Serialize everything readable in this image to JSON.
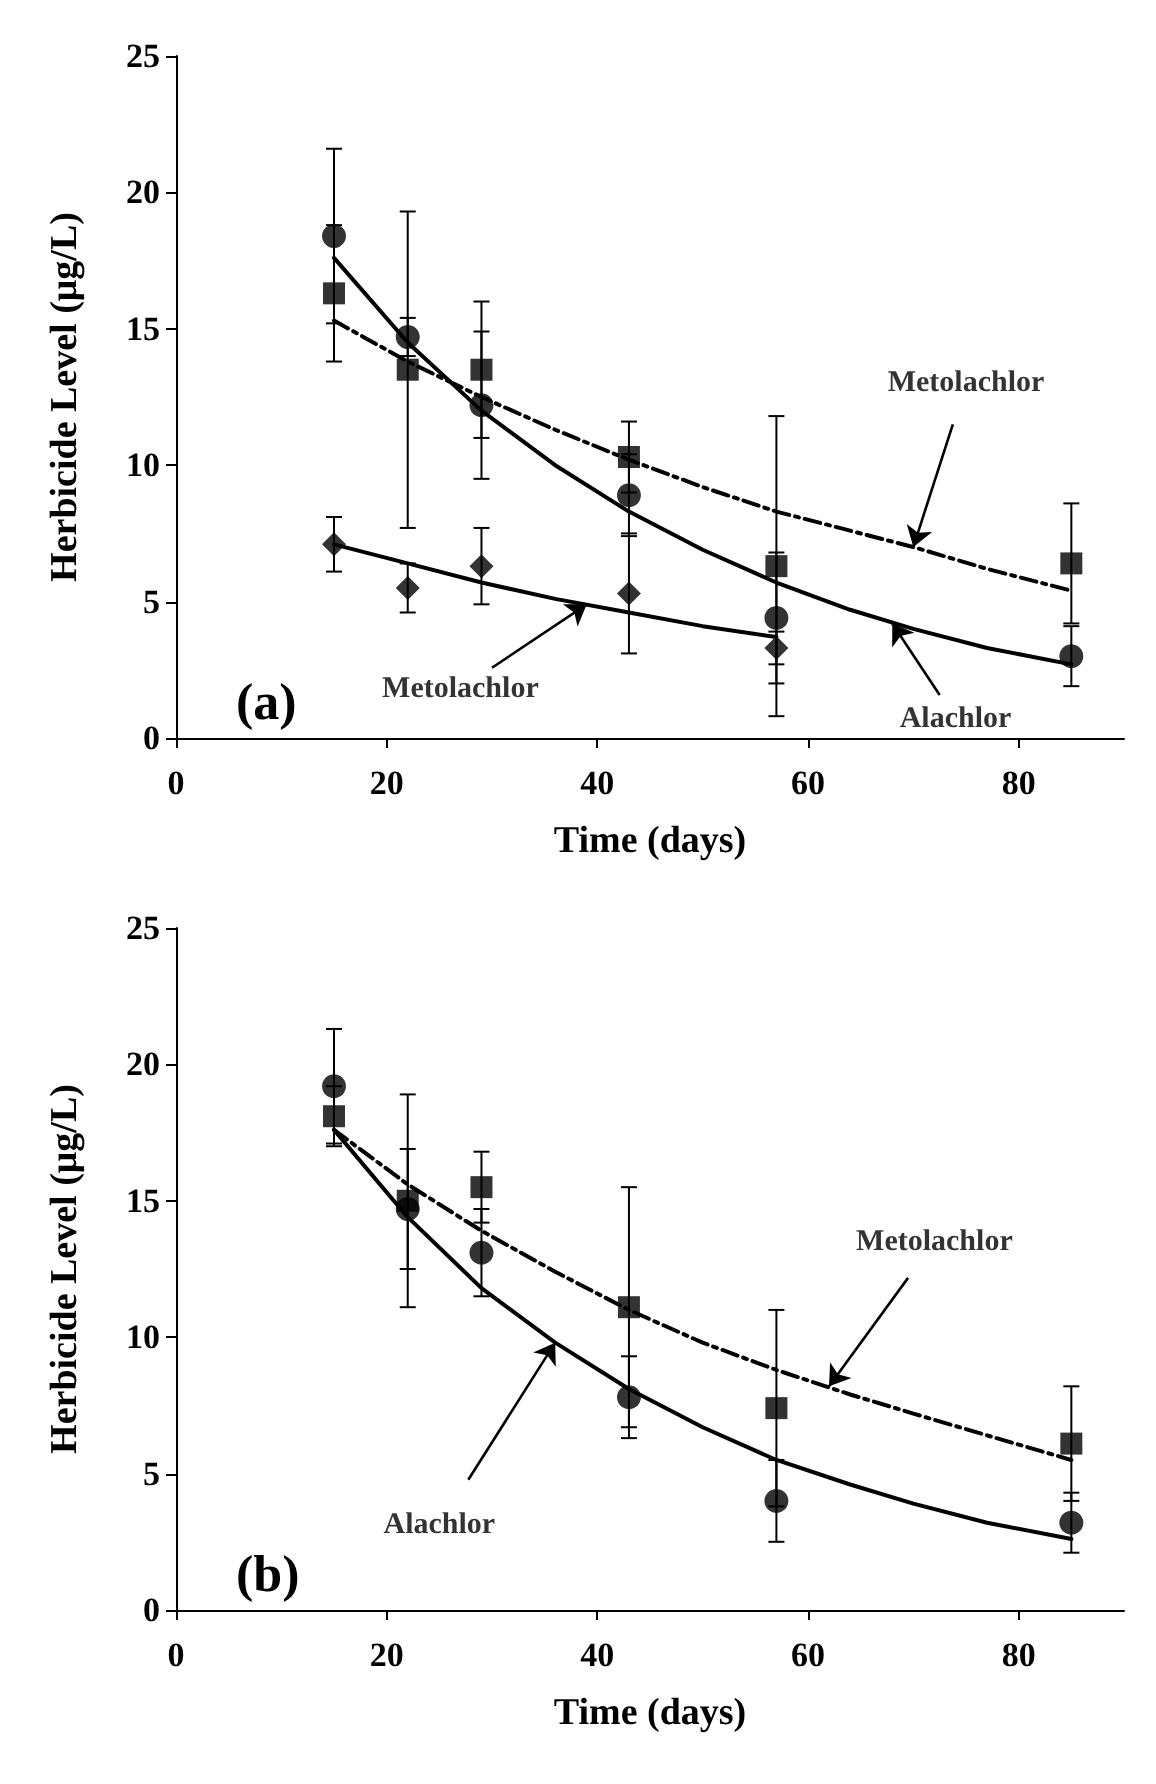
{
  "chart_data": [
    {
      "type": "scatter",
      "xlabel": "Time (days)",
      "ylabel": "Herbicide Level (μg/L)",
      "xlim": [
        0,
        90
      ],
      "xticks": [
        0,
        20,
        40,
        60,
        80
      ],
      "ylim": [
        0,
        25
      ],
      "yticks": [
        0,
        5,
        10,
        15,
        20,
        25
      ],
      "grid": false,
      "x": [
        15,
        22,
        29,
        43,
        57,
        85
      ],
      "series": [
        {
          "marker": "circle",
          "color": "#000000",
          "values": [
            18.4,
            14.7,
            12.2,
            8.9,
            4.4,
            3.0
          ],
          "errors": [
            3.2,
            0.7,
            2.7,
            1.5,
            2.4,
            1.1
          ]
        },
        {
          "marker": "square",
          "color": "#000000",
          "values": [
            16.3,
            13.5,
            13.5,
            10.3,
            6.3,
            6.4
          ],
          "errors": [
            2.5,
            5.8,
            2.5,
            1.3,
            5.5,
            2.2
          ]
        },
        {
          "marker": "diamond",
          "color": "#000000",
          "x": [
            15,
            22,
            29,
            43,
            57
          ],
          "values": [
            7.1,
            5.5,
            6.3,
            5.3,
            3.3
          ],
          "errors": [
            1.0,
            0.9,
            1.4,
            2.2,
            0.6
          ]
        },
        {
          "type": "line",
          "marker": "none",
          "line_style": "solid",
          "color": "#000000",
          "x": [
            15,
            22,
            29,
            36,
            43,
            50,
            57,
            64,
            70,
            77,
            85
          ],
          "values": [
            17.6,
            14.5,
            12.0,
            10.0,
            8.3,
            6.9,
            5.7,
            4.7,
            4.0,
            3.3,
            2.7
          ]
        },
        {
          "type": "line",
          "marker": "none",
          "line_style": "dashed",
          "color": "#000000",
          "x": [
            15,
            22,
            29,
            36,
            43,
            50,
            57,
            64,
            70,
            77,
            85
          ],
          "values": [
            15.3,
            13.8,
            12.5,
            11.3,
            10.2,
            9.2,
            8.3,
            7.6,
            7.0,
            6.2,
            5.4
          ]
        },
        {
          "type": "line",
          "marker": "none",
          "line_style": "solid",
          "color": "#000000",
          "x": [
            15,
            22,
            29,
            36,
            43,
            50,
            57
          ],
          "values": [
            7.1,
            6.4,
            5.7,
            5.1,
            4.6,
            4.1,
            3.7
          ]
        }
      ],
      "annotations": [
        {
          "text": "Metolachlor",
          "x": 70,
          "y": 7.0
        },
        {
          "text": "Metolachlor",
          "x": 39,
          "y": 4.9
        },
        {
          "text": "Alachlor",
          "x": 68,
          "y": 4.2
        },
        "(a)"
      ]
    },
    {
      "type": "scatter",
      "xlabel": "Time (days)",
      "ylabel": "Herbicide Level (μg/L)",
      "xlim": [
        0,
        90
      ],
      "xticks": [
        0,
        20,
        40,
        60,
        80
      ],
      "ylim": [
        0,
        25
      ],
      "yticks": [
        0,
        5,
        10,
        15,
        20,
        25
      ],
      "grid": false,
      "x": [
        15,
        22,
        29,
        43,
        57,
        85
      ],
      "series": [
        {
          "marker": "circle",
          "color": "#000000",
          "values": [
            19.2,
            14.7,
            13.1,
            7.8,
            4.0,
            3.2
          ],
          "errors": [
            2.1,
            2.2,
            1.6,
            1.5,
            1.5,
            1.1
          ]
        },
        {
          "marker": "square",
          "color": "#000000",
          "values": [
            18.1,
            15.0,
            15.5,
            11.1,
            7.4,
            6.1
          ],
          "errors": [
            1.1,
            3.9,
            1.3,
            4.4,
            3.6,
            2.1
          ]
        },
        {
          "type": "line",
          "marker": "none",
          "line_style": "solid",
          "color": "#000000",
          "x": [
            15,
            22,
            29,
            36,
            43,
            50,
            57,
            64,
            70,
            77,
            85
          ],
          "values": [
            17.6,
            14.4,
            11.8,
            9.8,
            8.1,
            6.7,
            5.5,
            4.6,
            3.9,
            3.2,
            2.6
          ]
        },
        {
          "type": "line",
          "marker": "none",
          "line_style": "dashed",
          "color": "#000000",
          "x": [
            15,
            22,
            29,
            36,
            43,
            50,
            57,
            64,
            70,
            77,
            85
          ],
          "values": [
            17.6,
            15.6,
            13.9,
            12.4,
            11.0,
            9.8,
            8.8,
            7.9,
            7.2,
            6.4,
            5.5
          ]
        }
      ],
      "annotations": [
        {
          "text": "Metolachlor",
          "x": 62,
          "y": 8.2
        },
        {
          "text": "Alachlor",
          "x": 36,
          "y": 9.8
        },
        "(b)"
      ]
    }
  ]
}
